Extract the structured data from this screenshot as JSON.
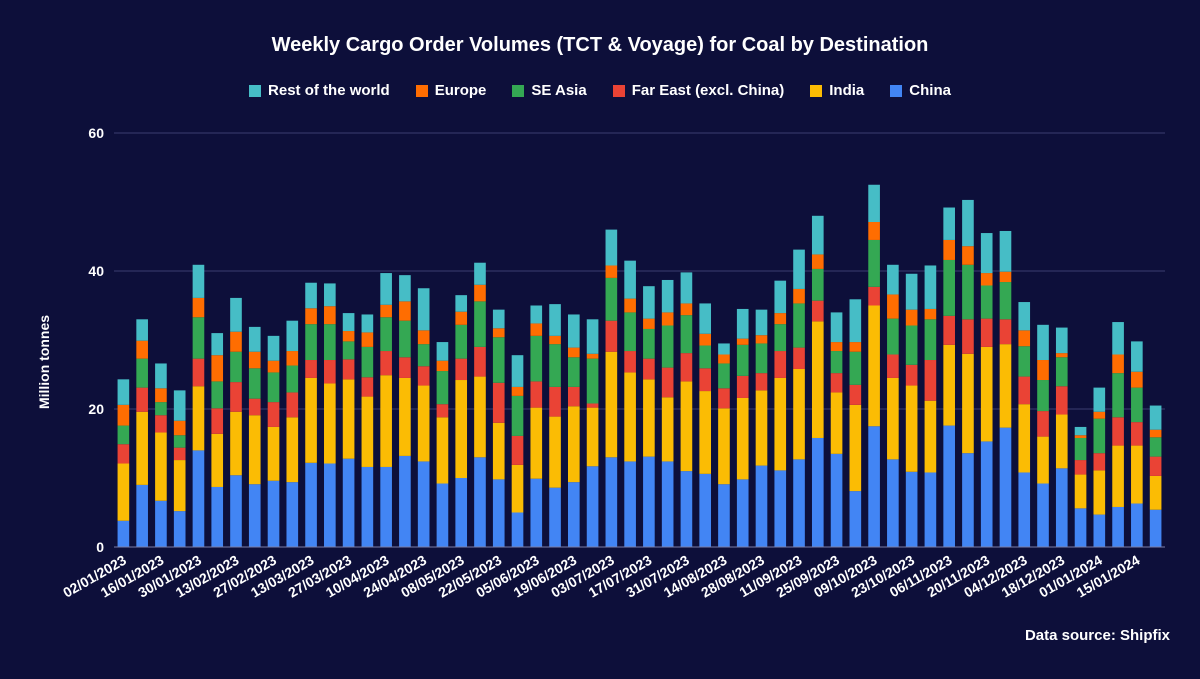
{
  "chart_data": {
    "type": "bar",
    "stacked": true,
    "title": "Weekly Cargo Order Volumes (TCT & Voyage) for Coal by Destination",
    "ylabel": "Million tonnes",
    "xlabel": "",
    "ylim": [
      0,
      60
    ],
    "yticks": [
      0,
      20,
      40,
      60
    ],
    "grid": true,
    "legend_position": "top-center",
    "categories": [
      "02/01/2023",
      "09/01/2023",
      "16/01/2023",
      "23/01/2023",
      "30/01/2023",
      "06/02/2023",
      "13/02/2023",
      "20/02/2023",
      "27/02/2023",
      "06/03/2023",
      "13/03/2023",
      "20/03/2023",
      "27/03/2023",
      "03/04/2023",
      "10/04/2023",
      "17/04/2023",
      "24/04/2023",
      "01/05/2023",
      "08/05/2023",
      "15/05/2023",
      "22/05/2023",
      "29/05/2023",
      "05/06/2023",
      "12/06/2023",
      "19/06/2023",
      "26/06/2023",
      "03/07/2023",
      "10/07/2023",
      "17/07/2023",
      "24/07/2023",
      "31/07/2023",
      "07/08/2023",
      "14/08/2023",
      "21/08/2023",
      "28/08/2023",
      "04/09/2023",
      "11/09/2023",
      "18/09/2023",
      "25/09/2023",
      "02/10/2023",
      "09/10/2023",
      "16/10/2023",
      "23/10/2023",
      "30/10/2023",
      "06/11/2023",
      "13/11/2023",
      "20/11/2023",
      "27/11/2023",
      "04/12/2023",
      "11/12/2023",
      "18/12/2023",
      "25/12/2023",
      "01/01/2024",
      "08/01/2024",
      "15/01/2024",
      "22/01/2024"
    ],
    "xtick_labels": [
      "02/01/2023",
      "16/01/2023",
      "30/01/2023",
      "13/02/2023",
      "27/02/2023",
      "13/03/2023",
      "27/03/2023",
      "10/04/2023",
      "24/04/2023",
      "08/05/2023",
      "22/05/2023",
      "05/06/2023",
      "19/06/2023",
      "03/07/2023",
      "17/07/2023",
      "31/07/2023",
      "14/08/2023",
      "28/08/2023",
      "11/09/2023",
      "25/09/2023",
      "09/10/2023",
      "23/10/2023",
      "06/11/2023",
      "20/11/2023",
      "04/12/2023",
      "18/12/2023",
      "01/01/2024",
      "15/01/2024"
    ],
    "series": [
      {
        "name": "China",
        "color": "#4285f4",
        "values": [
          3.8,
          9,
          6.7,
          5.2,
          14,
          8.7,
          10.4,
          9.1,
          9.6,
          9.4,
          12.2,
          12.1,
          12.8,
          11.6,
          11.6,
          13.2,
          12.4,
          9.2,
          10,
          13,
          9.8,
          5,
          9.9,
          8.6,
          9.4,
          11.7,
          13,
          12.4,
          13.1,
          12.4,
          11,
          10.6,
          9.1,
          9.8,
          11.8,
          11.1,
          12.7,
          15.8,
          13.5,
          8.1,
          17.5,
          12.7,
          10.9,
          10.8,
          17.6,
          13.6,
          15.3,
          17.3,
          10.8,
          9.2,
          11.4,
          5.6,
          4.7,
          5.8,
          6.3,
          5.4
        ]
      },
      {
        "name": "India",
        "color": "#fbbc04",
        "values": [
          8.3,
          10.6,
          9.9,
          7.4,
          9.3,
          7.7,
          9.2,
          10,
          7.8,
          9.4,
          12.3,
          11.6,
          11.5,
          10.2,
          13.3,
          11.3,
          11,
          9.6,
          14.2,
          11.7,
          8.2,
          6.9,
          10.3,
          10.3,
          11,
          8.5,
          15.3,
          12.9,
          11.2,
          9.3,
          13,
          12,
          11,
          11.8,
          10.9,
          13.4,
          13.1,
          16.9,
          8.9,
          12.5,
          17.5,
          11.8,
          12.5,
          10.4,
          11.7,
          14.4,
          13.7,
          12.1,
          9.9,
          6.8,
          7.8,
          4.9,
          6.4,
          8.9,
          8.4,
          4.9
        ]
      },
      {
        "name": "Far East (excl. China)",
        "color": "#ea4335",
        "values": [
          2.8,
          3.5,
          2.5,
          1.8,
          4,
          3.7,
          4.3,
          2.4,
          3.6,
          3.6,
          2.6,
          3.4,
          2.9,
          2.8,
          3.5,
          3,
          2.8,
          1.9,
          3.1,
          4.3,
          5.8,
          4.2,
          3.8,
          4.3,
          2.8,
          0.6,
          4.5,
          3.1,
          3,
          4.3,
          4.1,
          3.3,
          2.9,
          3.2,
          2.5,
          3.9,
          3.1,
          3,
          2.8,
          2.9,
          2.7,
          3.4,
          3,
          5.9,
          4.2,
          5,
          4.1,
          3.6,
          4,
          3.7,
          4.1,
          2.1,
          2.5,
          4.1,
          3.4,
          2.8
        ]
      },
      {
        "name": "SE Asia",
        "color": "#34a853",
        "values": [
          2.7,
          4.2,
          1.9,
          1.8,
          6,
          3.9,
          4.4,
          4.4,
          4.3,
          3.9,
          5.2,
          5.2,
          2.6,
          4.4,
          4.9,
          5.3,
          3.2,
          4.8,
          4.9,
          6.6,
          6.6,
          5.8,
          6.6,
          6.2,
          4.3,
          6.5,
          6.2,
          5.6,
          4.3,
          6.1,
          5.5,
          3.3,
          3.6,
          4.5,
          4.3,
          3.9,
          6.4,
          4.6,
          3.2,
          4.8,
          6.8,
          5.2,
          5.7,
          5.9,
          8.1,
          7.9,
          4.8,
          5.4,
          4.4,
          4.5,
          4.2,
          3.2,
          5,
          6.4,
          5,
          2.8
        ]
      },
      {
        "name": "Europe",
        "color": "#ff6d01",
        "values": [
          3,
          2.6,
          2,
          2.1,
          2.8,
          3.8,
          2.9,
          2.4,
          1.7,
          2.1,
          2.3,
          2.6,
          1.5,
          2.1,
          1.8,
          2.8,
          2,
          1.5,
          1.9,
          2.4,
          1.3,
          1.3,
          1.8,
          1.2,
          1.4,
          0.7,
          1.8,
          2,
          1.5,
          1.9,
          1.7,
          1.7,
          1.3,
          0.9,
          1.2,
          1.6,
          2.1,
          2.1,
          1.3,
          1.4,
          2.6,
          3.5,
          2.3,
          1.5,
          2.9,
          2.7,
          1.8,
          1.5,
          2.3,
          2.9,
          0.6,
          0.4,
          1,
          2.7,
          2.3,
          1.1
        ]
      },
      {
        "name": "Rest of the world",
        "color": "#46bdc6",
        "values": [
          3.7,
          3.1,
          3.6,
          4.4,
          4.8,
          3.2,
          4.9,
          3.6,
          3.6,
          4.4,
          3.7,
          3.3,
          2.6,
          2.6,
          4.6,
          3.8,
          6.1,
          2.7,
          2.4,
          3.2,
          2.7,
          4.6,
          2.6,
          4.6,
          4.8,
          5,
          5.2,
          5.5,
          4.7,
          4.7,
          4.5,
          4.4,
          1.6,
          4.3,
          3.7,
          4.7,
          5.7,
          5.6,
          4.3,
          6.2,
          5.4,
          4.3,
          5.2,
          6.3,
          4.7,
          6.7,
          5.8,
          5.9,
          4.1,
          5.1,
          3.7,
          1.2,
          3.5,
          4.7,
          4.4,
          3.5
        ]
      }
    ],
    "legend_order": [
      "Rest of the world",
      "Europe",
      "SE Asia",
      "Far East (excl. China)",
      "India",
      "China"
    ],
    "annotation": "Data source: Shipfix"
  },
  "colors": {
    "background": "#0d0f3a",
    "gridline": "#3a3e70",
    "axis_line": "#7a7ea8",
    "text": "#ffffff"
  }
}
